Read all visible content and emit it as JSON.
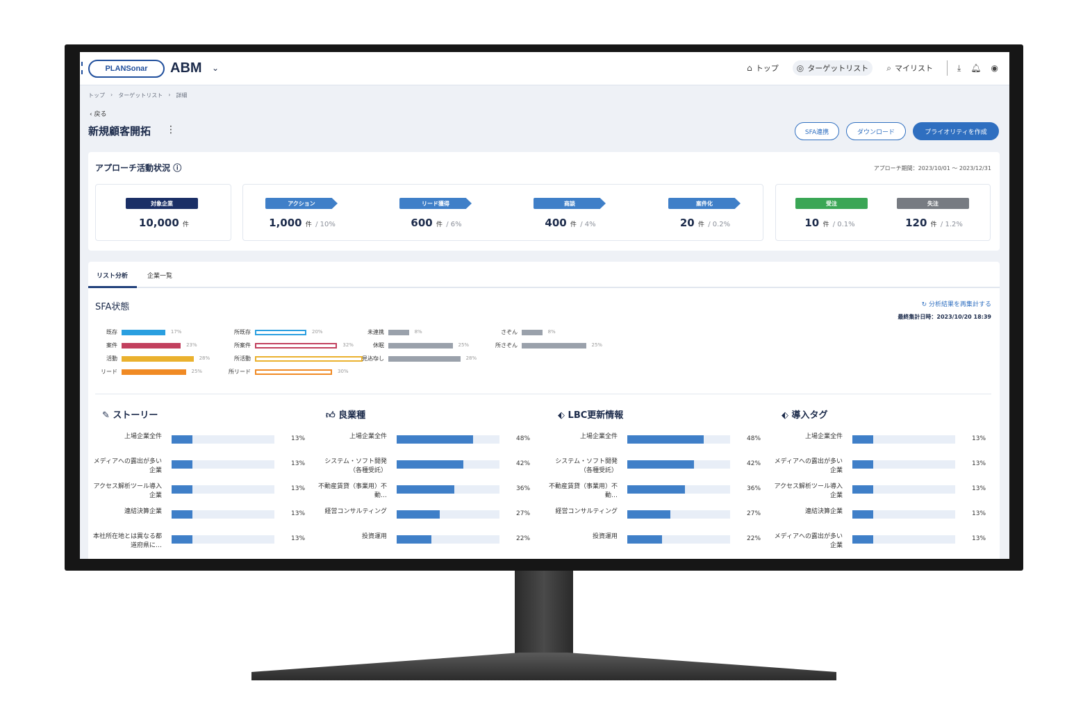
{
  "header": {
    "logo_text": "PLANSonar",
    "app_name": "ABM",
    "nav": [
      {
        "label": "トップ",
        "icon": "home-icon"
      },
      {
        "label": "ターゲットリスト",
        "icon": "target-icon"
      },
      {
        "label": "マイリスト",
        "icon": "search-icon"
      }
    ],
    "icons": [
      "download-icon",
      "bell-icon",
      "user-icon"
    ]
  },
  "breadcrumb": [
    "トップ",
    "ターゲットリスト",
    "詳細"
  ],
  "back_label": "戻る",
  "page_title": "新規顧客開拓",
  "buttons": {
    "sfa": "SFA連携",
    "download": "ダウンロード",
    "priority": "プライオリティを作成"
  },
  "approach": {
    "title": "アプローチ活動状況",
    "period": "アプローチ期間：2023/10/01 〜 2023/12/31",
    "target": {
      "label": "対象企業",
      "value": "10,000",
      "unit": "件",
      "color": "#1a2f66"
    },
    "stages": [
      {
        "label": "アクション",
        "value": "1,000",
        "unit": "件",
        "pct": "/ 10%",
        "color": "#3f7fc8"
      },
      {
        "label": "リード獲得",
        "value": "600",
        "unit": "件",
        "pct": "/ 6%",
        "color": "#3f7fc8"
      },
      {
        "label": "商談",
        "value": "400",
        "unit": "件",
        "pct": "/ 4%",
        "color": "#3f7fc8"
      },
      {
        "label": "案件化",
        "value": "20",
        "unit": "件",
        "pct": "/ 0.2%",
        "color": "#3f7fc8"
      }
    ],
    "results": [
      {
        "label": "受注",
        "value": "10",
        "unit": "件",
        "pct": "/ 0.1%",
        "color": "#3aa655"
      },
      {
        "label": "失注",
        "value": "120",
        "unit": "件",
        "pct": "/ 1.2%",
        "color": "#777b82"
      }
    ]
  },
  "tabs": [
    "リスト分析",
    "企業一覧"
  ],
  "sfa": {
    "title": "SFA状態",
    "recalc": "分析結果を再集計する",
    "last_agg": "最終集計日時：2023/10/20 18:39",
    "groups": [
      [
        {
          "label": "既存",
          "pct": "17%",
          "value": 17,
          "color": "#2a9fe0",
          "style": "solid"
        },
        {
          "label": "案件",
          "pct": "23%",
          "value": 23,
          "color": "#c2405e",
          "style": "solid"
        },
        {
          "label": "活動",
          "pct": "28%",
          "value": 28,
          "color": "#eab12e",
          "style": "solid"
        },
        {
          "label": "リード",
          "pct": "25%",
          "value": 25,
          "color": "#f08a24",
          "style": "solid"
        }
      ],
      [
        {
          "label": "所既存",
          "pct": "20%",
          "value": 20,
          "color": "#2a9fe0",
          "style": "outline"
        },
        {
          "label": "所案件",
          "pct": "32%",
          "value": 32,
          "color": "#c2405e",
          "style": "outline"
        },
        {
          "label": "所活動",
          "pct": "42%",
          "value": 42,
          "color": "#eab12e",
          "style": "outline"
        },
        {
          "label": "所リード",
          "pct": "30%",
          "value": 30,
          "color": "#f08a24",
          "style": "outline"
        }
      ],
      [
        {
          "label": "未連携",
          "pct": "8%",
          "value": 8,
          "color": "#9aa1ab",
          "style": "solid"
        },
        {
          "label": "休眠",
          "pct": "25%",
          "value": 25,
          "color": "#9aa1ab",
          "style": "solid"
        },
        {
          "label": "見込なし",
          "pct": "28%",
          "value": 28,
          "color": "#9aa1ab",
          "style": "solid"
        }
      ],
      [
        {
          "label": "さぞん",
          "pct": "8%",
          "value": 8,
          "color": "#9aa1ab",
          "style": "solid"
        },
        {
          "label": "所さぞん",
          "pct": "25%",
          "value": 25,
          "color": "#9aa1ab",
          "style": "solid"
        }
      ]
    ]
  },
  "metrics": [
    {
      "title": "ストーリー",
      "icon": "pen-icon",
      "rows": [
        {
          "label": "上場企業全件",
          "pct": "13%",
          "value": 13
        },
        {
          "label": "メディアへの露出が多い企業",
          "pct": "13%",
          "value": 13
        },
        {
          "label": "アクセス解析ツール導入企業",
          "pct": "13%",
          "value": 13
        },
        {
          "label": "連結決算企業",
          "pct": "13%",
          "value": 13
        },
        {
          "label": "本社所在地とは異なる都道府県に…",
          "pct": "13%",
          "value": 13
        }
      ]
    },
    {
      "title": "良業種",
      "icon": "thumb-up-icon",
      "rows": [
        {
          "label": "上場企業全件",
          "pct": "48%",
          "value": 48
        },
        {
          "label": "システム・ソフト開発（各種受託）",
          "pct": "42%",
          "value": 42
        },
        {
          "label": "不動産賃貸（事業用）不動…",
          "pct": "36%",
          "value": 36
        },
        {
          "label": "経営コンサルティング",
          "pct": "27%",
          "value": 27
        },
        {
          "label": "投資運用",
          "pct": "22%",
          "value": 22
        }
      ]
    },
    {
      "title": "LBC更新情報",
      "icon": "tag-icon",
      "rows": [
        {
          "label": "上場企業全件",
          "pct": "48%",
          "value": 48
        },
        {
          "label": "システム・ソフト開発（各種受託）",
          "pct": "42%",
          "value": 42
        },
        {
          "label": "不動産賃貸（事業用）不動…",
          "pct": "36%",
          "value": 36
        },
        {
          "label": "経営コンサルティング",
          "pct": "27%",
          "value": 27
        },
        {
          "label": "投資運用",
          "pct": "22%",
          "value": 22
        }
      ]
    },
    {
      "title": "導入タグ",
      "icon": "tag-icon",
      "rows": [
        {
          "label": "上場企業全件",
          "pct": "13%",
          "value": 13
        },
        {
          "label": "メディアへの露出が多い企業",
          "pct": "13%",
          "value": 13
        },
        {
          "label": "アクセス解析ツール導入企業",
          "pct": "13%",
          "value": 13
        },
        {
          "label": "連結決算企業",
          "pct": "13%",
          "value": 13
        },
        {
          "label": "メディアへの露出が多い企業",
          "pct": "13%",
          "value": 13
        }
      ]
    }
  ]
}
